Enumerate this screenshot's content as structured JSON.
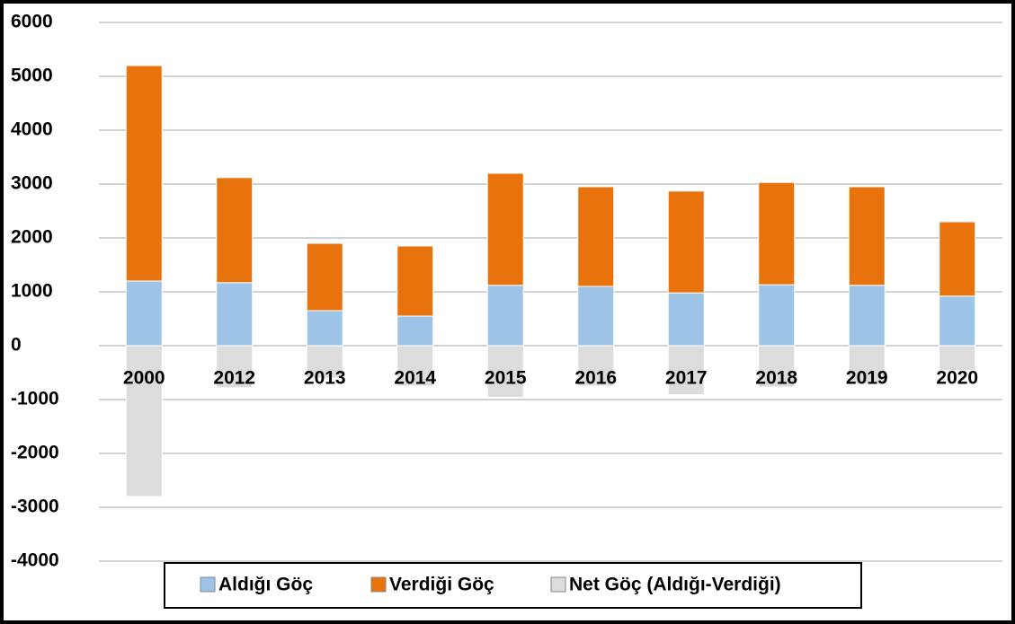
{
  "chart_data": {
    "type": "stacked_bar",
    "categories": [
      "2000",
      "2012",
      "2013",
      "2014",
      "2015",
      "2016",
      "2017",
      "2018",
      "2019",
      "2020"
    ],
    "series": [
      {
        "name": "Aldığı Göç",
        "color": "#9dc3e6",
        "values": [
          1200,
          1170,
          650,
          550,
          1120,
          1100,
          980,
          1130,
          1120,
          920
        ]
      },
      {
        "name": "Verdiği Göç",
        "color": "#e8720c",
        "values": [
          4000,
          1950,
          1250,
          1300,
          2080,
          1850,
          1890,
          1900,
          1830,
          1380
        ]
      },
      {
        "name": "Net Göç (Aldığı-Verdiği)",
        "color": "#dcdcdc",
        "values": [
          -2800,
          -780,
          -600,
          -750,
          -960,
          -750,
          -910,
          -770,
          -710,
          -460
        ]
      }
    ],
    "ylim": [
      -4000,
      6000
    ],
    "yticks": [
      -4000,
      -3000,
      -2000,
      -1000,
      0,
      1000,
      2000,
      3000,
      4000,
      5000,
      6000
    ],
    "grid": true,
    "legend": "bottom"
  }
}
